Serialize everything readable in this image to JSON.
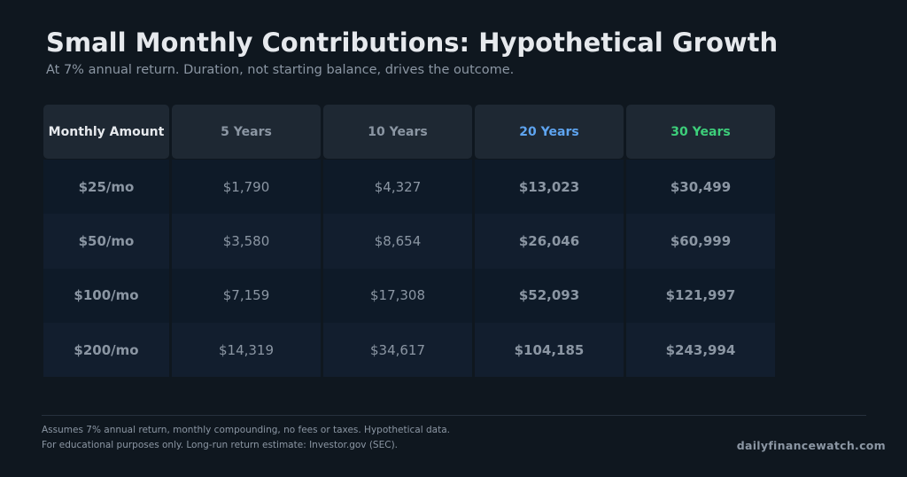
{
  "title": "Small Monthly Contributions: Hypothetical Growth",
  "subtitle": "At 7% annual return. Duration, not starting balance, drives the outcome.",
  "colors": {
    "background": "#0f171f",
    "twenty_year_accent": "#5ea4f0",
    "thirty_year_accent": "#3dce7a",
    "muted_text": "#8b96a3"
  },
  "chart_data": {
    "type": "table",
    "columns": [
      "Monthly Amount",
      "5 Years",
      "10 Years",
      "20 Years",
      "30 Years"
    ],
    "rows": [
      [
        "$25/mo",
        "$1,790",
        "$4,327",
        "$13,023",
        "$30,499"
      ],
      [
        "$50/mo",
        "$3,580",
        "$8,654",
        "$26,046",
        "$60,999"
      ],
      [
        "$100/mo",
        "$7,159",
        "$17,308",
        "$52,093",
        "$121,997"
      ],
      [
        "$200/mo",
        "$14,319",
        "$34,617",
        "$104,185",
        "$243,994"
      ]
    ]
  },
  "footnote": {
    "line1": "Assumes 7% annual return, monthly compounding, no fees or taxes. Hypothetical data.",
    "line2": "For educational purposes only. Long-run return estimate: Investor.gov (SEC)."
  },
  "brand": "dailyfinancewatch.com"
}
